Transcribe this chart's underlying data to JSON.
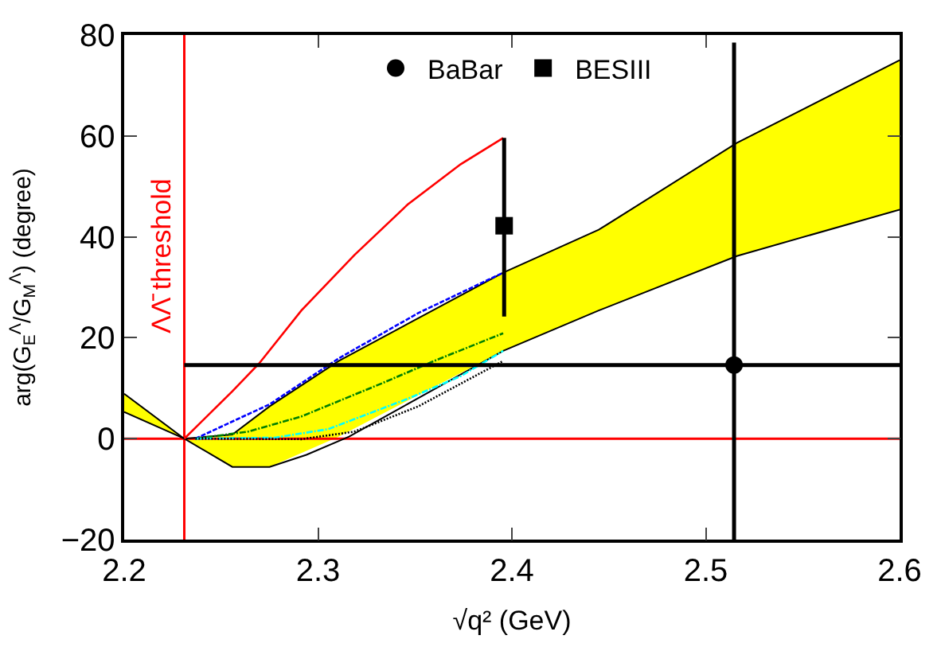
{
  "chart_data": {
    "type": "line",
    "xlabel": "√q² (GeV)",
    "ylabel": "arg(G$_{E}$$^{Λ}$/G$_{M}$$^{Λ}$) (degree)",
    "xlim": [
      2.2,
      2.6
    ],
    "xticks": [
      2.2,
      2.3,
      2.4,
      2.5,
      2.6
    ],
    "ylim": [
      -20,
      80
    ],
    "yticks": [
      -20,
      0,
      20,
      40,
      60,
      80
    ],
    "legend": "top",
    "ref_lines": [
      {
        "axis": "x",
        "value": 2.231,
        "label": "ΛΛ̄ threshold",
        "color": "#ff0000"
      },
      {
        "axis": "y",
        "value": 0,
        "color": "#ff0000"
      }
    ],
    "series": [
      {
        "type": "area",
        "color": "#ffff00",
        "x": [
          2.2,
          2.231,
          2.2558,
          2.275,
          2.3106,
          2.3955,
          2.4448,
          2.516,
          2.6
        ],
        "values": [
          null,
          null,
          null,
          null,
          null,
          null,
          null,
          null,
          null
        ],
        "lower": [
          5.3,
          0,
          -5.6,
          -5.6,
          0.4,
          17.4,
          25.4,
          36.2,
          45.4
        ],
        "upper": [
          8.9,
          0,
          0.8,
          6.4,
          15.4,
          32.9,
          41.4,
          58.6,
          75
        ]
      },
      {
        "color": "#000000",
        "line_style": "solid",
        "x": [
          2.2,
          2.231,
          2.2558,
          2.275,
          2.3106,
          2.3955,
          2.4448,
          2.516,
          2.6
        ],
        "values": [
          8.9,
          0,
          0.8,
          6.4,
          15.4,
          32.9,
          41.4,
          58.6,
          75
        ]
      },
      {
        "color": "#000000",
        "line_style": "solid",
        "x": [
          2.2,
          2.231,
          2.2558,
          2.275,
          2.294,
          2.316,
          2.3955,
          2.4448,
          2.516,
          2.6
        ],
        "values": [
          5.3,
          0,
          -5.6,
          -5.6,
          -3.2,
          0.4,
          17.4,
          25.4,
          36.2,
          45.4
        ]
      },
      {
        "color": "#ff0000",
        "line_style": "solid",
        "x": [
          2.231,
          2.2558,
          2.2696,
          2.2914,
          2.3188,
          2.3462,
          2.3736,
          2.3955
        ],
        "values": [
          0,
          9.4,
          14.9,
          25.4,
          36.4,
          46.4,
          54.4,
          59.6
        ]
      },
      {
        "color": "#0000ff",
        "line_style": "dashed",
        "x": [
          2.2367,
          2.2586,
          2.275,
          2.3106,
          2.3517,
          2.3955
        ],
        "values": [
          0,
          3.9,
          6.8,
          15.9,
          24.9,
          32.9
        ]
      },
      {
        "color": "#008000",
        "line_style": "dashdot",
        "x": [
          2.2367,
          2.264,
          2.2914,
          2.3325,
          2.3599,
          2.3955
        ],
        "values": [
          0,
          1.4,
          4.4,
          10.9,
          15.4,
          20.9
        ]
      },
      {
        "color": "#00ffff",
        "line_style": "dashdot",
        "x": [
          2.2367,
          2.2778,
          2.3053,
          2.3462,
          2.3736,
          2.3955
        ],
        "values": [
          0,
          0.2,
          1.9,
          7.9,
          12.4,
          17.4
        ]
      },
      {
        "color": "#000000",
        "line_style": "dotted",
        "x": [
          2.2367,
          2.2914,
          2.3188,
          2.3517,
          2.3736,
          2.3955
        ],
        "values": [
          0,
          -0.1,
          1.4,
          6.4,
          10.9,
          15.4
        ]
      },
      {
        "type": "scatter",
        "name": "BaBar",
        "color": "#000000",
        "marker": "circle",
        "x": [
          2.5146
        ],
        "values": [
          14.6
        ],
        "errors": [
          [
            -20,
            78.5
          ]
        ],
        "xerrors": [
          [
            2.231,
            2.6
          ]
        ]
      },
      {
        "type": "scatter",
        "name": "BESIII",
        "color": "#000000",
        "marker": "square",
        "x": [
          2.396
        ],
        "values": [
          42.2
        ],
        "errors": [
          [
            24.2,
            59.6
          ]
        ]
      }
    ]
  }
}
